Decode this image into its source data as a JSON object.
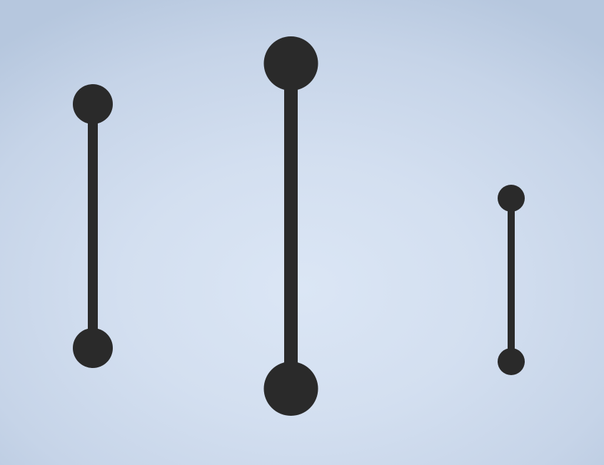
{
  "scene": {
    "background_colors": [
      "#dbe6f5",
      "#b6c7de"
    ],
    "object_color": "#2a2a2a",
    "objects": [
      {
        "name": "dumbbell-left",
        "shape": "dumbbell"
      },
      {
        "name": "dumbbell-center",
        "shape": "dumbbell"
      },
      {
        "name": "dumbbell-right",
        "shape": "dumbbell"
      }
    ]
  }
}
